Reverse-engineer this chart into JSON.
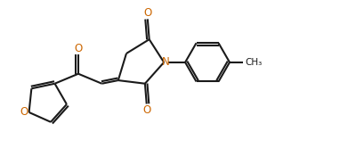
{
  "bg_color": "#ffffff",
  "line_color": "#1a1a1a",
  "line_width": 1.5,
  "N_color": "#cc6600",
  "O_color": "#cc6600",
  "figsize": [
    3.91,
    1.85
  ],
  "dpi": 100,
  "xlim": [
    0,
    10.5
  ],
  "ylim": [
    0,
    5.0
  ]
}
